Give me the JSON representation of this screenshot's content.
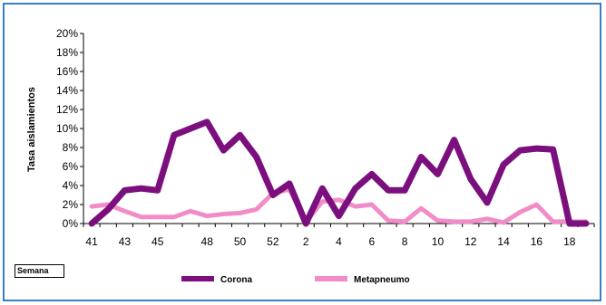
{
  "chart_data": {
    "type": "line",
    "title": "",
    "ylabel": "Tasa aislamientos",
    "xlabel": "Semana",
    "ylim": [
      0,
      20
    ],
    "y_ticks": [
      "0%",
      "2%",
      "4%",
      "6%",
      "8%",
      "10%",
      "12%",
      "14%",
      "16%",
      "18%",
      "20%"
    ],
    "x": [
      "41",
      "42",
      "43",
      "44",
      "45",
      "46",
      "47",
      "48",
      "49",
      "50",
      "51",
      "52",
      "1",
      "2",
      "3",
      "4",
      "5",
      "6",
      "7",
      "8",
      "9",
      "10",
      "11",
      "12",
      "13",
      "14",
      "15",
      "16",
      "17",
      "18",
      "19"
    ],
    "x_tick_labels": [
      "41",
      "43",
      "45",
      "48",
      "50",
      "52",
      "2",
      "4",
      "6",
      "8",
      "10",
      "12",
      "14",
      "16",
      "18"
    ],
    "x_tick_positions": [
      "41",
      "43",
      "45",
      "48",
      "50",
      "52",
      "2",
      "4",
      "6",
      "8",
      "10",
      "12",
      "14",
      "16",
      "18"
    ],
    "grid": false,
    "legend_position": "bottom",
    "series": [
      {
        "name": "Corona",
        "color": "#7b0f7e",
        "values": [
          0,
          1.5,
          3.5,
          3.7,
          3.5,
          9.3,
          10.0,
          10.7,
          7.7,
          9.3,
          7.0,
          3.0,
          4.2,
          0,
          3.7,
          0.8,
          3.7,
          5.2,
          3.5,
          3.5,
          7.0,
          5.2,
          8.8,
          4.7,
          2.2,
          6.2,
          7.7,
          7.9,
          7.8,
          0,
          0
        ]
      },
      {
        "name": "Metapneumo",
        "color": "#f28cc8",
        "values": [
          1.8,
          2.0,
          1.3,
          0.7,
          0.7,
          0.7,
          1.3,
          0.8,
          1.0,
          1.1,
          1.5,
          3.2,
          3.6,
          0.2,
          2.3,
          2.5,
          1.8,
          2.0,
          0.3,
          0.2,
          1.6,
          0.3,
          0.2,
          0.2,
          0.5,
          0.1,
          1.2,
          2.0,
          0.2,
          0.2,
          0.2
        ]
      }
    ]
  }
}
